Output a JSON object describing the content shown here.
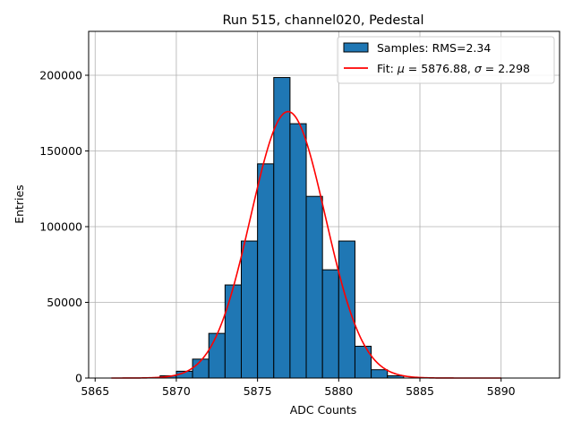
{
  "chart_data": {
    "type": "bar",
    "title": "Run 515, channel020, Pedestal",
    "xlabel": "ADC Counts",
    "ylabel": "Entries",
    "xlim": [
      5864.6,
      5893.6
    ],
    "ylim": [
      0,
      229000
    ],
    "xticks": [
      5865,
      5870,
      5875,
      5880,
      5885,
      5890
    ],
    "yticks": [
      0,
      50000,
      100000,
      150000,
      200000
    ],
    "grid": true,
    "legend_position": "top-right",
    "bar_color": "#1f77b4",
    "fit_color": "#ff0000",
    "histogram": {
      "name": "Samples: RMS=2.34",
      "bin_width": 1,
      "bin_edges_start": [
        5869,
        5870,
        5871,
        5872,
        5873,
        5874,
        5875,
        5876,
        5877,
        5878,
        5879,
        5880,
        5881,
        5882,
        5883
      ],
      "values": [
        1500,
        4500,
        12500,
        29500,
        61500,
        90500,
        141500,
        198500,
        168000,
        120000,
        71500,
        90500,
        21000,
        5500,
        1500
      ]
    },
    "fit": {
      "name_prefix": "Fit: ",
      "name_mu_symbol": "μ",
      "name_mid": " = 5876.88, ",
      "name_sigma_symbol": "σ",
      "name_suffix": " = 2.298",
      "mu": 5876.88,
      "sigma": 2.298,
      "amplitude": 176000,
      "x_range": [
        5866,
        5890
      ]
    }
  }
}
